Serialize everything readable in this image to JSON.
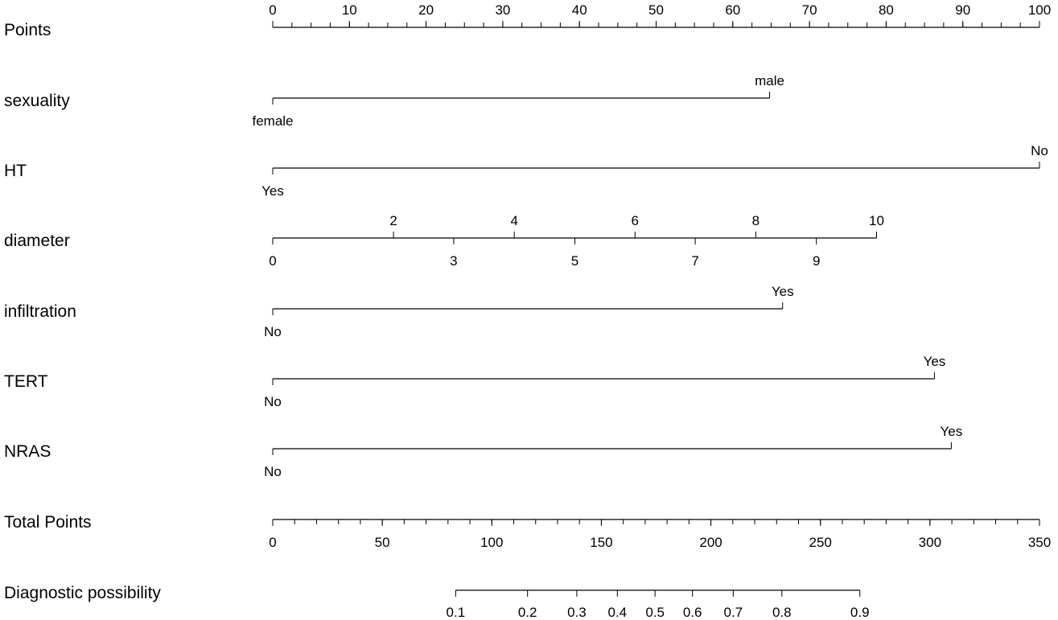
{
  "chart_data": {
    "type": "nomogram",
    "title": "",
    "rows": [
      {
        "name": "Points",
        "kind": "scale",
        "points_range": [
          0,
          100
        ],
        "minor_step": 2.5,
        "labels_above": [
          {
            "value": 0,
            "label": "0"
          },
          {
            "value": 10,
            "label": "10"
          },
          {
            "value": 20,
            "label": "20"
          },
          {
            "value": 30,
            "label": "30"
          },
          {
            "value": 40,
            "label": "40"
          },
          {
            "value": 50,
            "label": "50"
          },
          {
            "value": 60,
            "label": "60"
          },
          {
            "value": 70,
            "label": "70"
          },
          {
            "value": 80,
            "label": "80"
          },
          {
            "value": 90,
            "label": "90"
          },
          {
            "value": 100,
            "label": "100"
          }
        ],
        "labels_below": []
      },
      {
        "name": "sexuality",
        "kind": "categorical",
        "labels_above": [
          {
            "points": 64.8,
            "label": "male"
          }
        ],
        "labels_below": [
          {
            "points": 0,
            "label": "female"
          }
        ]
      },
      {
        "name": "HT",
        "kind": "categorical",
        "labels_above": [
          {
            "points": 100,
            "label": "No"
          }
        ],
        "labels_below": [
          {
            "points": 0,
            "label": "Yes"
          }
        ]
      },
      {
        "name": "diameter",
        "kind": "continuous",
        "labels_above": [
          {
            "points": 15.75,
            "label": "2"
          },
          {
            "points": 31.5,
            "label": "4"
          },
          {
            "points": 47.25,
            "label": "6"
          },
          {
            "points": 63.0,
            "label": "8"
          },
          {
            "points": 78.75,
            "label": "10"
          }
        ],
        "labels_below": [
          {
            "points": 0,
            "label": "0"
          },
          {
            "points": 23.6,
            "label": "3"
          },
          {
            "points": 39.4,
            "label": "5"
          },
          {
            "points": 55.1,
            "label": "7"
          },
          {
            "points": 70.9,
            "label": "9"
          }
        ]
      },
      {
        "name": "infiltration",
        "kind": "categorical",
        "labels_above": [
          {
            "points": 66.5,
            "label": "Yes"
          }
        ],
        "labels_below": [
          {
            "points": 0,
            "label": "No"
          }
        ]
      },
      {
        "name": "TERT",
        "kind": "categorical",
        "labels_above": [
          {
            "points": 86.3,
            "label": "Yes"
          }
        ],
        "labels_below": [
          {
            "points": 0,
            "label": "No"
          }
        ]
      },
      {
        "name": "NRAS",
        "kind": "categorical",
        "labels_above": [
          {
            "points": 88.5,
            "label": "Yes"
          }
        ],
        "labels_below": [
          {
            "points": 0,
            "label": "No"
          }
        ]
      },
      {
        "name": "Total Points",
        "kind": "scale",
        "points_range": [
          0,
          350
        ],
        "minor_step": 10,
        "labels_above": [],
        "labels_below": [
          {
            "value": 0,
            "label": "0"
          },
          {
            "value": 50,
            "label": "50"
          },
          {
            "value": 100,
            "label": "100"
          },
          {
            "value": 150,
            "label": "150"
          },
          {
            "value": 200,
            "label": "200"
          },
          {
            "value": 250,
            "label": "250"
          },
          {
            "value": 300,
            "label": "300"
          },
          {
            "value": 350,
            "label": "350"
          }
        ]
      },
      {
        "name": "Diagnostic possibility",
        "kind": "probability",
        "labels_above": [],
        "labels_below": [
          {
            "total_points": 83.5,
            "label": "0.1"
          },
          {
            "total_points": 116.3,
            "label": "0.2"
          },
          {
            "total_points": 138.8,
            "label": "0.3"
          },
          {
            "total_points": 157.3,
            "label": "0.4"
          },
          {
            "total_points": 174.5,
            "label": "0.5"
          },
          {
            "total_points": 191.6,
            "label": "0.6"
          },
          {
            "total_points": 210.2,
            "label": "0.7"
          },
          {
            "total_points": 232.4,
            "label": "0.8"
          },
          {
            "total_points": 268.0,
            "label": "0.9"
          }
        ]
      }
    ]
  }
}
